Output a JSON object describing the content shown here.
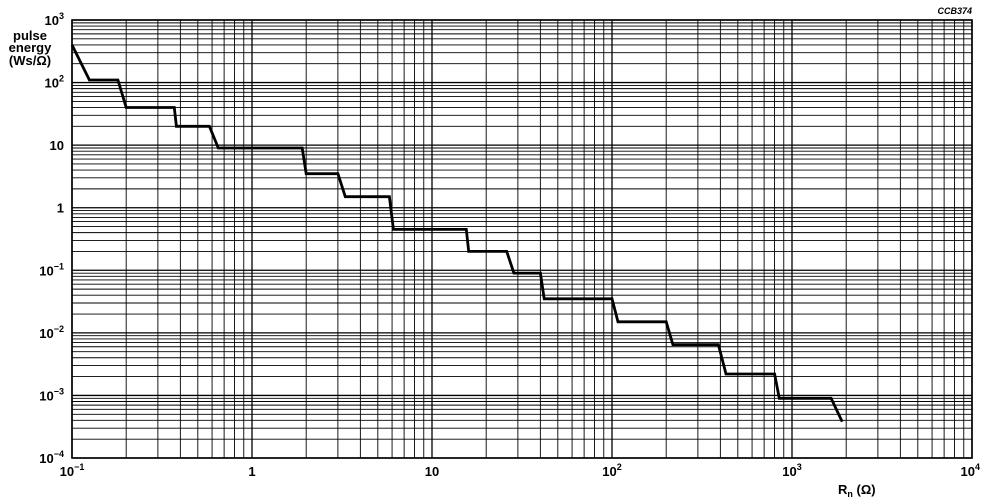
{
  "chart_data": {
    "type": "line",
    "code": "CCB374",
    "ylabel_lines": [
      "pulse",
      "energy",
      "(Ws/Ω)"
    ],
    "xlabel": {
      "main": "R",
      "sub": "n",
      "unit": " (Ω)"
    },
    "x_scale": "log",
    "y_scale": "log",
    "xlim": [
      0.1,
      10000
    ],
    "ylim": [
      0.0001,
      1000
    ],
    "grid": true,
    "x_ticks": [
      {
        "value": 0.1,
        "base": "10",
        "exp": "−1"
      },
      {
        "value": 1,
        "base": "1",
        "exp": ""
      },
      {
        "value": 10,
        "base": "10",
        "exp": ""
      },
      {
        "value": 100,
        "base": "10",
        "exp": "2"
      },
      {
        "value": 1000,
        "base": "10",
        "exp": "3"
      },
      {
        "value": 10000,
        "base": "10",
        "exp": "4"
      }
    ],
    "y_ticks": [
      {
        "value": 1000,
        "base": "10",
        "exp": "3"
      },
      {
        "value": 100,
        "base": "10",
        "exp": "2"
      },
      {
        "value": 10,
        "base": "10",
        "exp": ""
      },
      {
        "value": 1,
        "base": "1",
        "exp": ""
      },
      {
        "value": 0.1,
        "base": "10",
        "exp": "−1"
      },
      {
        "value": 0.01,
        "base": "10",
        "exp": "−2"
      },
      {
        "value": 0.001,
        "base": "10",
        "exp": "−3"
      },
      {
        "value": 0.0001,
        "base": "10",
        "exp": "−4"
      }
    ],
    "series": [
      {
        "x": [
          0.1,
          0.125,
          0.18,
          0.2,
          0.37,
          0.38,
          0.58,
          0.65,
          1.9,
          2.0,
          3.0,
          3.3,
          5.8,
          6.1,
          15.5,
          16.0,
          26.0,
          28.5,
          40.0,
          42.0,
          100.0,
          108.0,
          200.0,
          218.0,
          390.0,
          430.0,
          800.0,
          850.0,
          1650.0,
          1900.0
        ],
        "y": [
          400,
          110,
          110,
          40,
          40,
          20,
          20,
          9,
          9,
          3.5,
          3.5,
          1.5,
          1.5,
          0.45,
          0.45,
          0.2,
          0.2,
          0.09,
          0.09,
          0.035,
          0.035,
          0.015,
          0.015,
          0.0065,
          0.0065,
          0.0022,
          0.0022,
          0.0009,
          0.0009,
          0.00038
        ]
      }
    ]
  }
}
